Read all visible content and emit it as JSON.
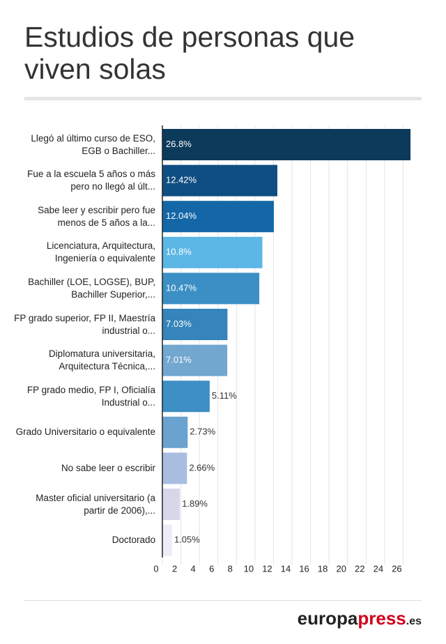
{
  "chart_data": {
    "type": "barh",
    "title": "Estudios de personas que viven solas",
    "categories": [
      "Llegó al último curso de ESO, EGB o Bachiller...",
      "Fue a la escuela 5 años o más pero no llegó al últ...",
      "Sabe leer y escribir pero fue menos de 5 años a la...",
      "Licenciatura, Arquitectura, Ingeniería o equivalente",
      "Bachiller (LOE, LOGSE), BUP, Bachiller Superior,...",
      "FP grado superior, FP II, Maestría industrial o...",
      "Diplomatura universitaria, Arquitectura Técnica,...",
      "FP grado medio, FP I, Oficialía Industrial o...",
      "Grado Universitario o equivalente",
      "No sabe leer o escribir",
      "Master oficial universitario (a partir de 2006),...",
      "Doctorado"
    ],
    "values": [
      26.8,
      12.42,
      12.04,
      10.8,
      10.47,
      7.03,
      7.01,
      5.11,
      2.73,
      2.66,
      1.89,
      1.05
    ],
    "value_labels": [
      "26.8%",
      "12.42%",
      "12.04%",
      "10.8%",
      "10.47%",
      "7.03%",
      "7.01%",
      "5.11%",
      "2.73%",
      "2.66%",
      "1.89%",
      "1.05%"
    ],
    "colors": [
      "#0c3a5b",
      "#0f4e82",
      "#1467a6",
      "#5cb7e6",
      "#3b8fc5",
      "#3584bb",
      "#72a7cf",
      "#3d8fc4",
      "#6aa3cf",
      "#a8bddf",
      "#d7d7ea",
      "#ededf5"
    ],
    "xlim": [
      0,
      28
    ],
    "xticks": [
      0,
      2,
      4,
      6,
      8,
      10,
      12,
      14,
      16,
      18,
      20,
      22,
      24,
      26
    ],
    "grid": true
  },
  "footer_logo": [
    "europa",
    "press",
    ".es"
  ]
}
